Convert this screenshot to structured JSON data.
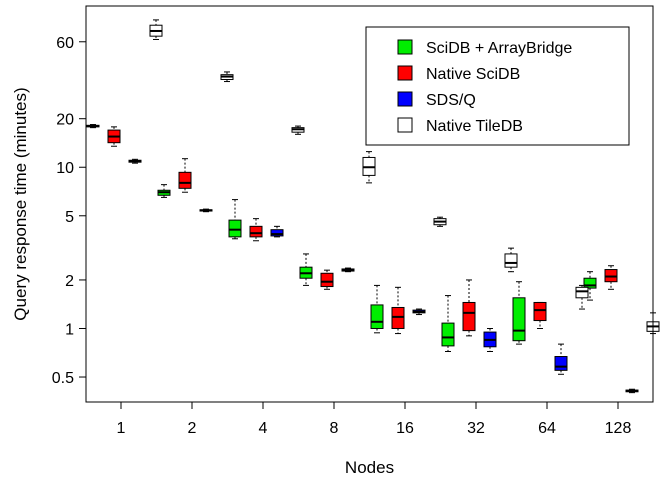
{
  "chart_data": {
    "type": "boxplot",
    "title": "",
    "xlabel": "Nodes",
    "ylabel": "Query response time (minutes)",
    "y_scale": "log",
    "ylim": [
      0.35,
      100
    ],
    "y_ticks": [
      0.5,
      1,
      2,
      5,
      10,
      20,
      60
    ],
    "y_tick_labels": [
      "0.5",
      "1",
      "2",
      "5",
      "10",
      "20",
      "60"
    ],
    "categories": [
      "1",
      "2",
      "4",
      "8",
      "16",
      "32",
      "64",
      "128"
    ],
    "grid": false,
    "legend_position": "top-right",
    "series": [
      {
        "name": "SciDB + ArrayBridge",
        "color": "#00ee00",
        "boxes": [
          {
            "category": "1",
            "min": 17.6,
            "q1": 17.8,
            "median": 18.0,
            "q3": 18.2,
            "max": 18.4
          },
          {
            "category": "2",
            "min": 6.5,
            "q1": 6.7,
            "median": 7.0,
            "q3": 7.2,
            "max": 7.8
          },
          {
            "category": "4",
            "min": 3.6,
            "q1": 3.7,
            "median": 4.1,
            "q3": 4.7,
            "max": 6.3
          },
          {
            "category": "8",
            "min": 1.85,
            "q1": 2.05,
            "median": 2.2,
            "q3": 2.4,
            "max": 2.9
          },
          {
            "category": "16",
            "min": 0.94,
            "q1": 1.0,
            "median": 1.1,
            "q3": 1.4,
            "max": 1.85
          },
          {
            "category": "32",
            "min": 0.72,
            "q1": 0.78,
            "median": 0.88,
            "q3": 1.08,
            "max": 1.6
          },
          {
            "category": "64",
            "min": 0.8,
            "q1": 0.84,
            "median": 0.97,
            "q3": 1.55,
            "max": 1.95
          },
          {
            "category": "128",
            "min": 1.5,
            "q1": 1.78,
            "median": 1.85,
            "q3": 2.05,
            "max": 2.25
          }
        ]
      },
      {
        "name": "Native SciDB",
        "color": "#ff0000",
        "boxes": [
          {
            "category": "1",
            "min": 13.5,
            "q1": 14.2,
            "median": 15.5,
            "q3": 17.0,
            "max": 17.8
          },
          {
            "category": "2",
            "min": 7.0,
            "q1": 7.4,
            "median": 8.0,
            "q3": 9.3,
            "max": 11.3
          },
          {
            "category": "4",
            "min": 3.5,
            "q1": 3.7,
            "median": 3.9,
            "q3": 4.3,
            "max": 4.8
          },
          {
            "category": "8",
            "min": 1.75,
            "q1": 1.82,
            "median": 1.95,
            "q3": 2.2,
            "max": 2.3
          },
          {
            "category": "16",
            "min": 0.93,
            "q1": 1.0,
            "median": 1.18,
            "q3": 1.35,
            "max": 1.8
          },
          {
            "category": "32",
            "min": 0.9,
            "q1": 0.97,
            "median": 1.25,
            "q3": 1.45,
            "max": 2.0
          },
          {
            "category": "64",
            "min": 1.0,
            "q1": 1.12,
            "median": 1.3,
            "q3": 1.45,
            "max": 1.45
          },
          {
            "category": "128",
            "min": 1.75,
            "q1": 1.95,
            "median": 2.1,
            "q3": 2.32,
            "max": 2.45
          }
        ]
      },
      {
        "name": "SDS/Q",
        "color": "#0000ff",
        "boxes": [
          {
            "category": "1",
            "min": 10.6,
            "q1": 10.75,
            "median": 10.9,
            "q3": 11.05,
            "max": 11.2
          },
          {
            "category": "2",
            "min": 5.3,
            "q1": 5.35,
            "median": 5.4,
            "q3": 5.45,
            "max": 5.5
          },
          {
            "category": "4",
            "min": 3.7,
            "q1": 3.75,
            "median": 3.85,
            "q3": 4.1,
            "max": 4.3
          },
          {
            "category": "8",
            "min": 2.25,
            "q1": 2.27,
            "median": 2.3,
            "q3": 2.34,
            "max": 2.37
          },
          {
            "category": "16",
            "min": 1.22,
            "q1": 1.25,
            "median": 1.27,
            "q3": 1.3,
            "max": 1.32
          },
          {
            "category": "32",
            "min": 0.72,
            "q1": 0.77,
            "median": 0.85,
            "q3": 0.95,
            "max": 1.0
          },
          {
            "category": "64",
            "min": 0.52,
            "q1": 0.55,
            "median": 0.58,
            "q3": 0.67,
            "max": 0.8
          },
          {
            "category": "128",
            "min": 0.4,
            "q1": 0.405,
            "median": 0.41,
            "q3": 0.415,
            "max": 0.42
          }
        ]
      },
      {
        "name": "Native TileDB",
        "color": "#ffffff",
        "boxes": [
          {
            "category": "1",
            "min": 62.0,
            "q1": 65.0,
            "median": 70.0,
            "q3": 76.0,
            "max": 82.0
          },
          {
            "category": "2",
            "min": 34.0,
            "q1": 35.0,
            "median": 36.5,
            "q3": 37.5,
            "max": 39.0
          },
          {
            "category": "4",
            "min": 16.0,
            "q1": 16.5,
            "median": 17.2,
            "q3": 17.6,
            "max": 18.0
          },
          {
            "category": "8",
            "min": 8.0,
            "q1": 8.9,
            "median": 10.0,
            "q3": 11.5,
            "max": 12.5
          },
          {
            "category": "16",
            "min": 4.3,
            "q1": 4.4,
            "median": 4.6,
            "q3": 4.8,
            "max": 4.9
          },
          {
            "category": "32",
            "min": 2.25,
            "q1": 2.4,
            "median": 2.55,
            "q3": 2.9,
            "max": 3.15
          },
          {
            "category": "64",
            "min": 1.32,
            "q1": 1.55,
            "median": 1.7,
            "q3": 1.8,
            "max": 1.85
          },
          {
            "category": "128",
            "min": 0.93,
            "q1": 0.96,
            "median": 1.03,
            "q3": 1.1,
            "max": 1.25
          }
        ]
      }
    ]
  }
}
